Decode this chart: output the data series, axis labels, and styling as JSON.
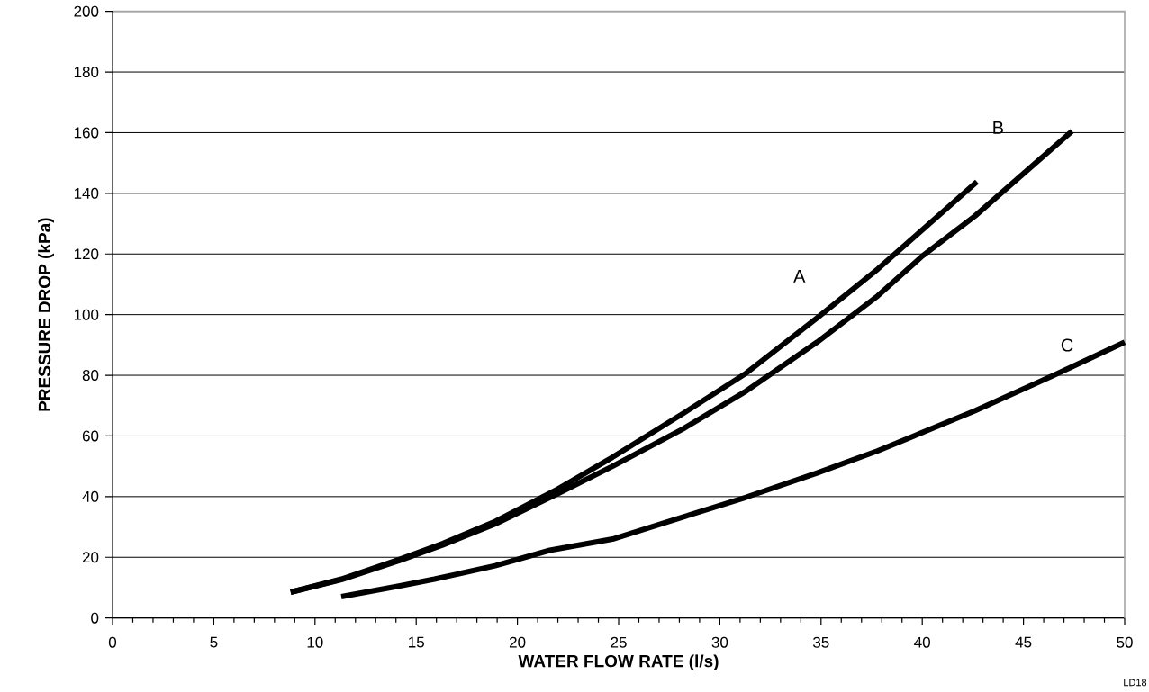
{
  "chart_data": {
    "type": "line",
    "xlabel": "WATER FLOW RATE (l/s)",
    "ylabel": "PRESSURE DROP (kPa)",
    "xlim": [
      0,
      50
    ],
    "xticks": [
      0,
      5,
      10,
      15,
      20,
      25,
      30,
      35,
      40,
      45,
      50
    ],
    "ylim": [
      0,
      200
    ],
    "yticks": [
      0,
      20,
      40,
      60,
      80,
      100,
      120,
      140,
      160,
      180,
      200
    ],
    "grid": "y",
    "series": [
      {
        "name": "A",
        "color": "#000000",
        "x": [
          8.8,
          11.3,
          14.2,
          16.3,
          18.9,
          22,
          24.7,
          28.2,
          31.3,
          34.8,
          37.8,
          42.7
        ],
        "values": [
          8.5,
          12.8,
          19.4,
          24.5,
          31.8,
          42.5,
          53,
          67.5,
          80.7,
          98.9,
          115,
          143.8
        ]
      },
      {
        "name": "B",
        "color": "#000000",
        "x": [
          8.8,
          11.3,
          14.2,
          16.3,
          18.9,
          22,
          24.7,
          28.2,
          31.3,
          34.8,
          37.8,
          40,
          42.6,
          47.4
        ],
        "values": [
          8.5,
          12.6,
          19,
          24,
          31,
          41,
          50,
          62.4,
          74.8,
          90.9,
          106.2,
          119.3,
          132.5,
          160.5
        ]
      },
      {
        "name": "C",
        "color": "#000000",
        "x": [
          11.3,
          14.2,
          15.9,
          18.9,
          21.6,
          24.7,
          28.2,
          31.3,
          34.8,
          37.8,
          42.6,
          46.5,
          50
        ],
        "values": [
          7,
          10.6,
          12.8,
          17.2,
          22.3,
          26,
          33.3,
          39.8,
          47.8,
          55.1,
          68.3,
          80,
          90.9
        ]
      }
    ],
    "annotations": [
      "LD18"
    ],
    "line_style": "solid"
  }
}
